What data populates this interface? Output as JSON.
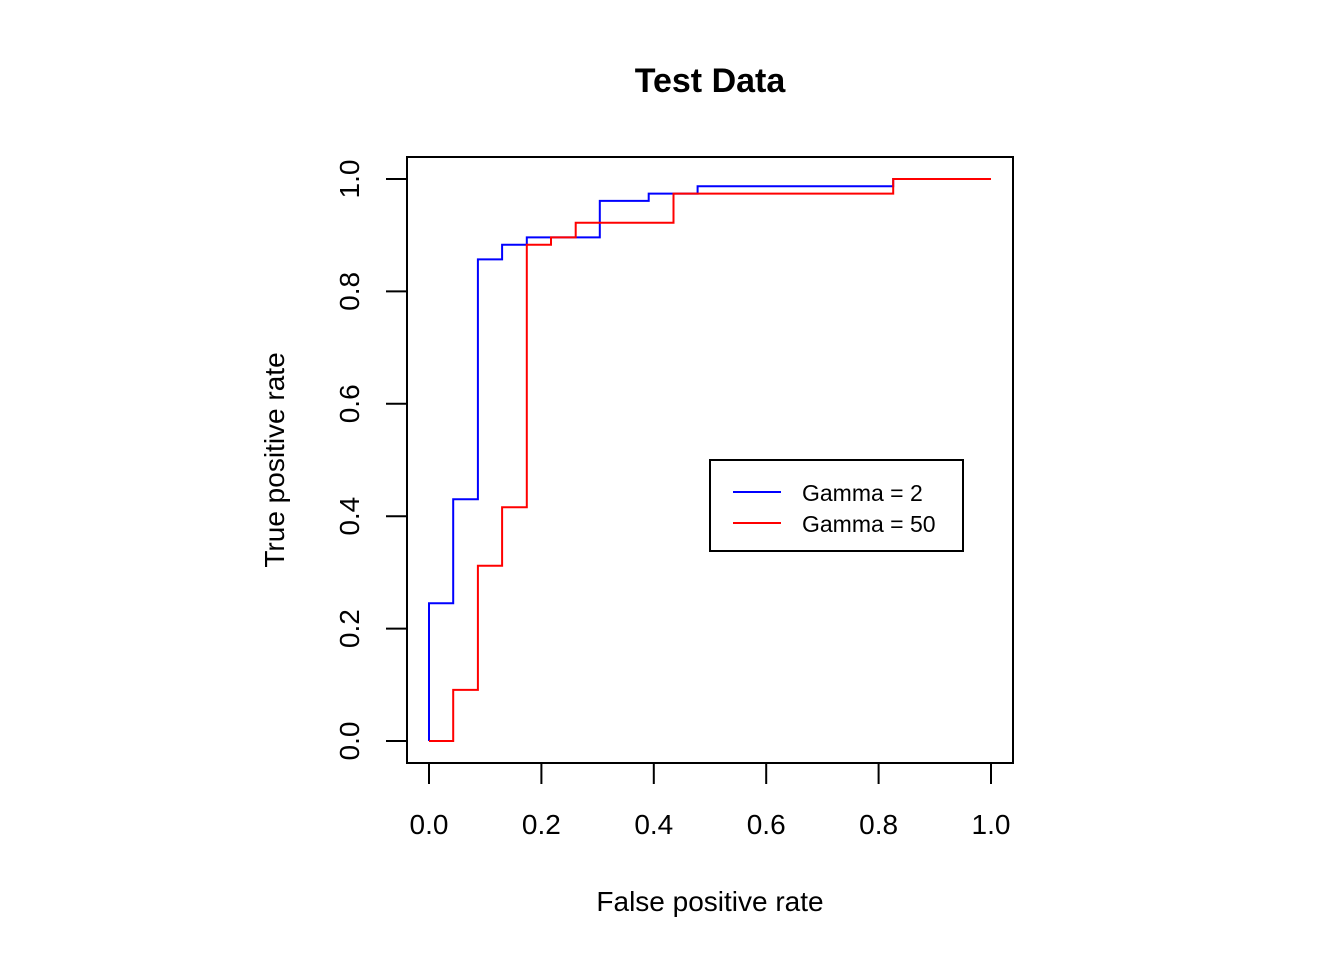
{
  "chart_data": {
    "type": "line",
    "title": "Test Data",
    "xlabel": "False positive rate",
    "ylabel": "True positive rate",
    "xlim": [
      0,
      1
    ],
    "ylim": [
      0,
      1
    ],
    "x_ticks": [
      "0.0",
      "0.2",
      "0.4",
      "0.6",
      "0.8",
      "1.0"
    ],
    "y_ticks": [
      "0.0",
      "0.2",
      "0.4",
      "0.6",
      "0.8",
      "1.0"
    ],
    "grid": false,
    "legend_position": "right",
    "series": [
      {
        "name": "Gamma = 2",
        "color": "#0000ff",
        "points": [
          [
            0.0,
            0.0
          ],
          [
            0.0,
            0.245
          ],
          [
            0.043,
            0.245
          ],
          [
            0.043,
            0.43
          ],
          [
            0.087,
            0.43
          ],
          [
            0.087,
            0.857
          ],
          [
            0.13,
            0.857
          ],
          [
            0.13,
            0.883
          ],
          [
            0.174,
            0.883
          ],
          [
            0.174,
            0.896
          ],
          [
            0.304,
            0.896
          ],
          [
            0.304,
            0.961
          ],
          [
            0.391,
            0.961
          ],
          [
            0.391,
            0.974
          ],
          [
            0.478,
            0.974
          ],
          [
            0.478,
            0.987
          ],
          [
            0.826,
            0.987
          ],
          [
            0.826,
            1.0
          ],
          [
            1.0,
            1.0
          ]
        ]
      },
      {
        "name": "Gamma = 50",
        "color": "#ff0000",
        "points": [
          [
            0.0,
            0.0
          ],
          [
            0.043,
            0.0
          ],
          [
            0.043,
            0.091
          ],
          [
            0.087,
            0.091
          ],
          [
            0.087,
            0.312
          ],
          [
            0.13,
            0.312
          ],
          [
            0.13,
            0.416
          ],
          [
            0.174,
            0.416
          ],
          [
            0.174,
            0.883
          ],
          [
            0.217,
            0.883
          ],
          [
            0.217,
            0.896
          ],
          [
            0.261,
            0.896
          ],
          [
            0.261,
            0.922
          ],
          [
            0.435,
            0.922
          ],
          [
            0.435,
            0.974
          ],
          [
            0.826,
            0.974
          ],
          [
            0.826,
            1.0
          ],
          [
            1.0,
            1.0
          ]
        ]
      }
    ]
  }
}
